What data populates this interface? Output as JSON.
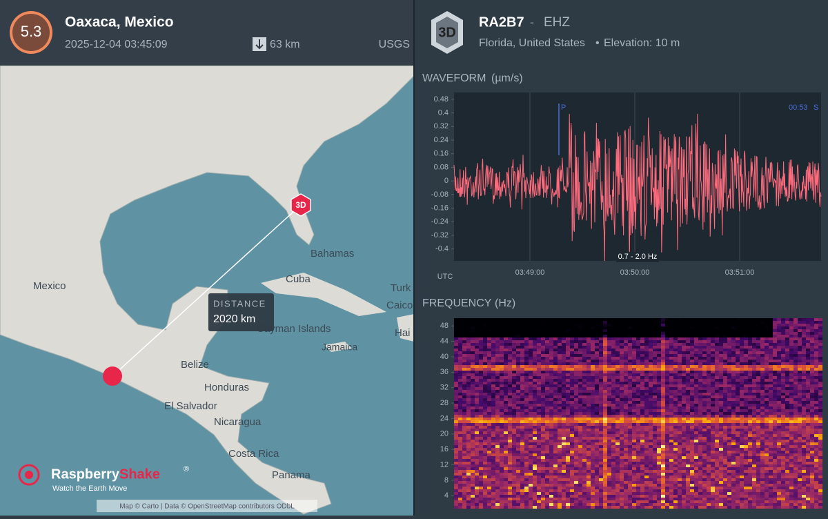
{
  "header": {
    "magnitude": "5.3",
    "location": "Oaxaca, Mexico",
    "datetime": "2025-12-04 03:45:09",
    "depth": "63 km",
    "source": "USGS"
  },
  "map": {
    "labels": [
      "Mexico",
      "Bahamas",
      "Cuba",
      "Turk",
      "Caicos",
      "Cayman Islands",
      "Jamaica",
      "Hai",
      "Belize",
      "Honduras",
      "El Salvador",
      "Nicaragua",
      "Costa Rica",
      "Panama"
    ],
    "distance": {
      "label": "DISTANCE",
      "value": "2020 km"
    },
    "station_marker": "3D",
    "logo": {
      "name": "Raspberry",
      "name_accent": "Shake",
      "registered": "®",
      "tagline": "Watch the Earth Move"
    },
    "attribution": "Map © Carto | Data © OpenStreetMap contributors ODbL"
  },
  "station": {
    "badge": "3D",
    "code": "RA2B7",
    "separator": "-",
    "channel": "EHZ",
    "location": "Florida, United States",
    "bullet": "•",
    "elevation": "Elevation: 10 m"
  },
  "waveform": {
    "title": "WAVEFORM",
    "unit": "(µm/s)",
    "ylim": [
      -0.47,
      0.52
    ],
    "yticks": [
      0.48,
      0.4,
      0.32,
      0.24,
      0.16,
      0.08,
      0,
      -0.08,
      -0.16,
      -0.24,
      -0.32,
      -0.4
    ],
    "x_axis_label": "UTC",
    "xtick_labels": [
      "03:49:00",
      "03:50:00",
      "03:51:00"
    ],
    "phase_p": "P",
    "time_label": "00:53",
    "phase_s": "S",
    "filter": "0.7 - 2.0 Hz"
  },
  "frequency": {
    "title": "FREQUENCY",
    "unit": "(Hz)",
    "ylim": [
      1,
      50
    ],
    "yticks": [
      4,
      8,
      12,
      16,
      20,
      24,
      28,
      32,
      36,
      40,
      44,
      48
    ]
  }
}
